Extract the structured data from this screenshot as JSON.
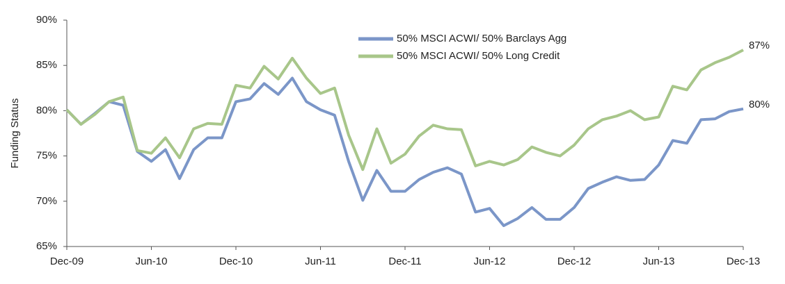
{
  "chart_data": {
    "type": "line",
    "y_label": "Funding Status",
    "legend": "top",
    "categories": [
      "Dec-09",
      null,
      null,
      null,
      null,
      null,
      "Jun-10",
      null,
      null,
      null,
      null,
      null,
      "Dec-10",
      null,
      null,
      null,
      null,
      null,
      "Jun-11",
      null,
      null,
      null,
      null,
      null,
      "Dec-11",
      null,
      null,
      null,
      null,
      null,
      "Jun-12",
      null,
      null,
      null,
      null,
      null,
      "Dec-12",
      null,
      null,
      null,
      null,
      null,
      "Jun-13",
      null,
      null,
      null,
      null,
      null,
      "Dec-13"
    ],
    "ylim": [
      65,
      90
    ],
    "yticks": [
      {
        "value": 65,
        "label": "65%"
      },
      {
        "value": 70,
        "label": "70%"
      },
      {
        "value": 75,
        "label": "75%"
      },
      {
        "value": 80,
        "label": "80%"
      },
      {
        "value": 85,
        "label": "85%"
      },
      {
        "value": 90,
        "label": "90%"
      }
    ],
    "series": [
      {
        "name": "50% MSCI ACWI/ 50% Barclays Agg",
        "color": "#7b96c8",
        "values": [
          80.1,
          78.5,
          79.7,
          81.0,
          80.6,
          75.5,
          74.4,
          75.7,
          72.5,
          75.7,
          77.0,
          77.0,
          81.0,
          81.3,
          83.0,
          81.8,
          83.6,
          81.0,
          80.1,
          79.5,
          74.4,
          70.1,
          73.4,
          71.1,
          71.1,
          72.4,
          73.2,
          73.7,
          73.0,
          68.8,
          69.2,
          67.3,
          68.1,
          69.3,
          68.0,
          68.0,
          69.3,
          71.4,
          72.1,
          72.7,
          72.3,
          72.4,
          74.0,
          76.7,
          76.4,
          79.0,
          79.1,
          79.9,
          80.2
        ],
        "value_labels": [
          null,
          null,
          null,
          null,
          null,
          null,
          null,
          null,
          null,
          null,
          null,
          null,
          null,
          null,
          null,
          null,
          null,
          null,
          null,
          null,
          null,
          null,
          null,
          null,
          null,
          null,
          null,
          null,
          null,
          null,
          null,
          null,
          null,
          null,
          null,
          null,
          null,
          null,
          null,
          null,
          null,
          null,
          null,
          null,
          null,
          null,
          null,
          null,
          "80%"
        ]
      },
      {
        "name": "50% MSCI ACWI/ 50% Long Credit",
        "color": "#a8c68a",
        "values": [
          80.1,
          78.5,
          79.6,
          81.0,
          81.5,
          75.6,
          75.3,
          77.0,
          74.8,
          78.0,
          78.6,
          78.5,
          82.8,
          82.5,
          84.9,
          83.5,
          85.8,
          83.6,
          81.9,
          82.5,
          77.3,
          73.5,
          78.0,
          74.2,
          75.2,
          77.2,
          78.4,
          78.0,
          77.9,
          73.9,
          74.4,
          74.0,
          74.6,
          76.0,
          75.4,
          75.0,
          76.2,
          78.0,
          79.0,
          79.4,
          80.0,
          79.0,
          79.3,
          82.7,
          82.3,
          84.5,
          85.3,
          85.9,
          86.7
        ],
        "value_labels": [
          null,
          null,
          null,
          null,
          null,
          null,
          null,
          null,
          null,
          null,
          null,
          null,
          null,
          null,
          null,
          null,
          null,
          null,
          null,
          null,
          null,
          null,
          null,
          null,
          null,
          null,
          null,
          null,
          null,
          null,
          null,
          null,
          null,
          null,
          null,
          null,
          null,
          null,
          null,
          null,
          null,
          null,
          null,
          null,
          null,
          null,
          null,
          null,
          "87%"
        ]
      }
    ]
  }
}
